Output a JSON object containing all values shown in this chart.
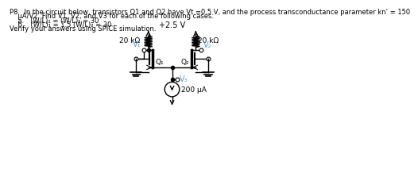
{
  "title_text": "P8.  In the circuit below, transistors Q1 and Q2 have Vt =0.5 V, and the process transconductance parameter kn’ = 150",
  "line2": "    μA/V2. Find V1, V2, and V3 for each of the following cases:",
  "line3": "    a.   (W/L)₁ = (W/L)₂ = 30",
  "line4": "    b.   (W/L)₁ = 1.5 (W/L)₂ = 30",
  "line5": "Verify your answers using SPICE simulation.",
  "vdd_label": "+2.5 V",
  "r1_label": "20 kΩ",
  "r2_label": "20 kΩ",
  "v1_label": "V₁",
  "v2_label": "V₂",
  "v3_label": "V₃",
  "q1_label": "Q₁",
  "q2_label": "Q₂",
  "isource_label": "200 μA",
  "bg_color": "#ffffff",
  "lc": "#000000",
  "tc": "#000000",
  "blue": "#5b9bd5"
}
